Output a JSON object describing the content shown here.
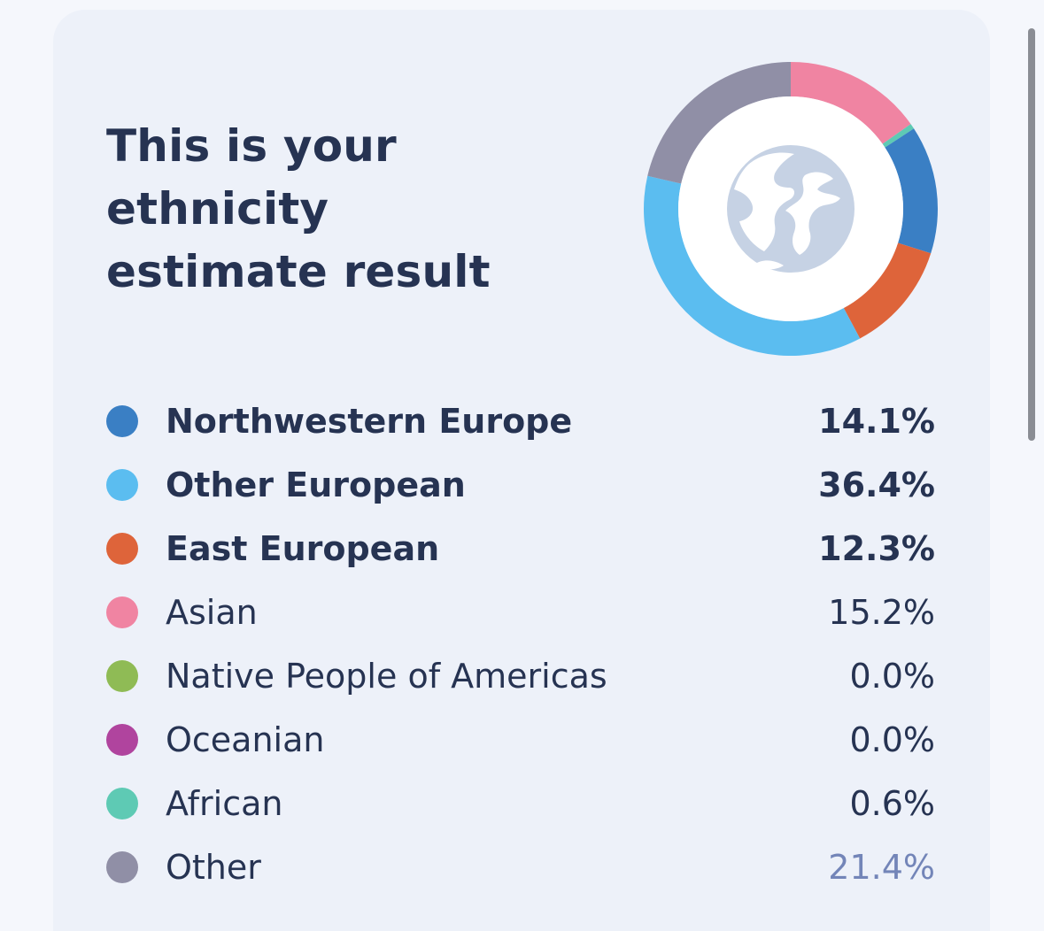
{
  "title_lines": [
    "This is your",
    "ethnicity",
    "estimate result"
  ],
  "center_icon": "globe-icon",
  "chart_data": {
    "type": "pie",
    "donut": true,
    "categories": [
      "Northwestern Europe",
      "Other European",
      "East European",
      "Asian",
      "Native People of Americas",
      "Oceanian",
      "African",
      "Other"
    ],
    "values_text": [
      "14.1%",
      "36.4%",
      "12.3%",
      "15.2%",
      "0.0%",
      "0.0%",
      "0.6%",
      "21.4%"
    ],
    "values": [
      14.1,
      36.4,
      12.3,
      15.2,
      0.0,
      0.0,
      0.6,
      21.4
    ],
    "colors": [
      "#3a7fc4",
      "#5bbdf0",
      "#de643a",
      "#f084a2",
      "#8fbb55",
      "#b0449e",
      "#5ecab4",
      "#908fa6"
    ],
    "bold": [
      true,
      true,
      true,
      false,
      false,
      false,
      false,
      false
    ],
    "muted_value": [
      false,
      false,
      false,
      false,
      false,
      false,
      false,
      true
    ],
    "ring_order": [
      "Asian",
      "African",
      "Northwestern Europe",
      "East European",
      "Other European",
      "Other"
    ]
  }
}
